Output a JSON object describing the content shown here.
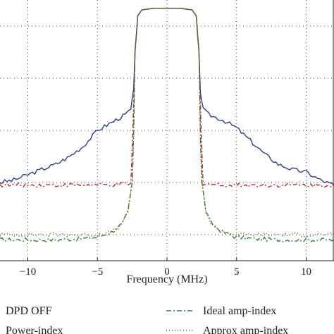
{
  "chart_data": {
    "type": "line",
    "title": "",
    "xlabel": "Frequency (MHz)",
    "ylabel": "",
    "xlim": [
      -12,
      12
    ],
    "ylim": [
      -110,
      -10
    ],
    "x_ticks": [
      -10,
      -5,
      0,
      5,
      10
    ],
    "x_tick_labels": [
      "−10",
      "−5",
      "0",
      "5",
      "10"
    ],
    "y_gridlines": [
      -100,
      -80,
      -60,
      -40,
      -20
    ],
    "grid": true,
    "legend_position": "bottom",
    "series": [
      {
        "name": "DPD OFF",
        "color": "#2c3e8f",
        "dash": "solid",
        "points": [
          [
            -12,
            -80
          ],
          [
            -11,
            -79
          ],
          [
            -10,
            -77
          ],
          [
            -9,
            -75
          ],
          [
            -8,
            -73
          ],
          [
            -7,
            -70
          ],
          [
            -6,
            -66
          ],
          [
            -5,
            -60
          ],
          [
            -4,
            -57
          ],
          [
            -3,
            -54
          ],
          [
            -2.6,
            -52
          ],
          [
            -2.4,
            -45
          ],
          [
            -2.3,
            -30
          ],
          [
            -2.1,
            -16
          ],
          [
            -1.8,
            -13.8
          ],
          [
            -1,
            -13.2
          ],
          [
            0,
            -13.2
          ],
          [
            1,
            -13.2
          ],
          [
            1.8,
            -13.8
          ],
          [
            2.1,
            -16
          ],
          [
            2.3,
            -30
          ],
          [
            2.4,
            -45
          ],
          [
            2.6,
            -52
          ],
          [
            3,
            -54
          ],
          [
            4,
            -56
          ],
          [
            5,
            -59
          ],
          [
            6,
            -64
          ],
          [
            7,
            -69
          ],
          [
            8,
            -73
          ],
          [
            9,
            -75
          ],
          [
            10,
            -76
          ],
          [
            11,
            -79
          ],
          [
            12,
            -81
          ]
        ]
      },
      {
        "name": "Power-index",
        "color": "#c0272d",
        "dash": "6,3,2,3",
        "points": [
          [
            -12,
            -81
          ],
          [
            -10,
            -81
          ],
          [
            -8,
            -81
          ],
          [
            -6,
            -81
          ],
          [
            -4,
            -81
          ],
          [
            -2.6,
            -80.5
          ],
          [
            -2.45,
            -60
          ],
          [
            -2.3,
            -30
          ],
          [
            -2.1,
            -16
          ],
          [
            -1.8,
            -13.8
          ],
          [
            -1,
            -13.2
          ],
          [
            0,
            -13.2
          ],
          [
            1,
            -13.2
          ],
          [
            1.8,
            -13.8
          ],
          [
            2.1,
            -16
          ],
          [
            2.3,
            -30
          ],
          [
            2.45,
            -60
          ],
          [
            2.6,
            -80.5
          ],
          [
            4,
            -81
          ],
          [
            6,
            -81
          ],
          [
            8,
            -81
          ],
          [
            10,
            -81
          ],
          [
            12,
            -81
          ]
        ]
      },
      {
        "name": "Ideal amp-index",
        "color": "#2e7d3a",
        "dash": "7,3,2,3",
        "points": [
          [
            -12,
            -102
          ],
          [
            -10,
            -102
          ],
          [
            -8,
            -102
          ],
          [
            -6,
            -101.5
          ],
          [
            -5,
            -101
          ],
          [
            -4,
            -99
          ],
          [
            -3.2,
            -96
          ],
          [
            -2.8,
            -91
          ],
          [
            -2.5,
            -80
          ],
          [
            -2.4,
            -62
          ],
          [
            -2.3,
            -30
          ],
          [
            -2.1,
            -16
          ],
          [
            -1.8,
            -13.8
          ],
          [
            -1,
            -13.2
          ],
          [
            0,
            -13.2
          ],
          [
            1,
            -13.2
          ],
          [
            1.8,
            -13.8
          ],
          [
            2.1,
            -16
          ],
          [
            2.3,
            -30
          ],
          [
            2.4,
            -62
          ],
          [
            2.5,
            -80
          ],
          [
            2.8,
            -91
          ],
          [
            3.2,
            -96
          ],
          [
            4,
            -99
          ],
          [
            5,
            -101
          ],
          [
            6,
            -101.5
          ],
          [
            8,
            -102
          ],
          [
            10,
            -102
          ],
          [
            12,
            -102
          ]
        ]
      },
      {
        "name": "Approx amp-index",
        "color": "#7a6a2a",
        "dash": "1,3",
        "points": [
          [
            -12,
            -100
          ],
          [
            -10,
            -100
          ],
          [
            -8,
            -100
          ],
          [
            -6,
            -100
          ],
          [
            -5,
            -100
          ],
          [
            -4,
            -99
          ],
          [
            -3.2,
            -96
          ],
          [
            -2.8,
            -91
          ],
          [
            -2.5,
            -80
          ],
          [
            -2.4,
            -62
          ],
          [
            -2.3,
            -30
          ],
          [
            -2.1,
            -16
          ],
          [
            -1.8,
            -13.8
          ],
          [
            -1,
            -13.2
          ],
          [
            0,
            -13.2
          ],
          [
            1,
            -13.2
          ],
          [
            1.8,
            -13.8
          ],
          [
            2.1,
            -16
          ],
          [
            2.3,
            -30
          ],
          [
            2.4,
            -62
          ],
          [
            2.5,
            -80
          ],
          [
            2.8,
            -91
          ],
          [
            3.2,
            -96
          ],
          [
            4,
            -99
          ],
          [
            5,
            -100
          ],
          [
            6,
            -100
          ],
          [
            8,
            -100
          ],
          [
            10,
            -100
          ],
          [
            12,
            -100
          ]
        ]
      }
    ]
  }
}
